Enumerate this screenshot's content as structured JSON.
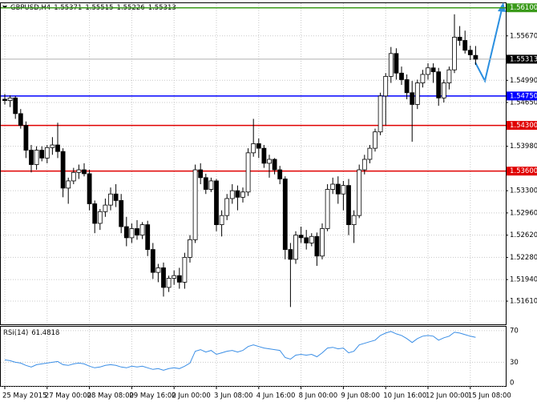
{
  "chart_data": {
    "type": "candlestick",
    "title": "GBPUSD,H4",
    "ohlc": [
      [
        1.547,
        1.5478,
        1.5462,
        1.5468
      ],
      [
        1.5468,
        1.5476,
        1.5458,
        1.5472
      ],
      [
        1.5472,
        1.5475,
        1.544,
        1.5448
      ],
      [
        1.5448,
        1.5455,
        1.5425,
        1.543
      ],
      [
        1.543,
        1.5436,
        1.538,
        1.5392
      ],
      [
        1.5392,
        1.54,
        1.5358,
        1.537
      ],
      [
        1.537,
        1.5398,
        1.5362,
        1.5392
      ],
      [
        1.5392,
        1.5398,
        1.5375,
        1.538
      ],
      [
        1.538,
        1.54,
        1.5372,
        1.5396
      ],
      [
        1.5396,
        1.5412,
        1.5385,
        1.54
      ],
      [
        1.54,
        1.5434,
        1.538,
        1.539
      ],
      [
        1.539,
        1.5395,
        1.532,
        1.5334
      ],
      [
        1.5334,
        1.535,
        1.531,
        1.5345
      ],
      [
        1.5345,
        1.5365,
        1.534,
        1.5358
      ],
      [
        1.5358,
        1.537,
        1.5348,
        1.5362
      ],
      [
        1.5362,
        1.5372,
        1.5352,
        1.5356
      ],
      [
        1.5356,
        1.5362,
        1.53,
        1.531
      ],
      [
        1.531,
        1.5315,
        1.5265,
        1.528
      ],
      [
        1.528,
        1.5302,
        1.527,
        1.5298
      ],
      [
        1.5298,
        1.5318,
        1.529,
        1.5308
      ],
      [
        1.5308,
        1.5335,
        1.53,
        1.5325
      ],
      [
        1.5325,
        1.534,
        1.5305,
        1.5315
      ],
      [
        1.5315,
        1.5325,
        1.5265,
        1.5275
      ],
      [
        1.5275,
        1.529,
        1.5245,
        1.5258
      ],
      [
        1.5258,
        1.528,
        1.525,
        1.5272
      ],
      [
        1.5272,
        1.5285,
        1.5255,
        1.5262
      ],
      [
        1.5262,
        1.5282,
        1.5256,
        1.5278
      ],
      [
        1.5278,
        1.5284,
        1.523,
        1.524
      ],
      [
        1.524,
        1.525,
        1.5195,
        1.5205
      ],
      [
        1.5205,
        1.5218,
        1.519,
        1.5212
      ],
      [
        1.5212,
        1.522,
        1.5168,
        1.5182
      ],
      [
        1.5182,
        1.52,
        1.5175,
        1.5196
      ],
      [
        1.5196,
        1.5208,
        1.5186,
        1.52
      ],
      [
        1.52,
        1.5212,
        1.518,
        1.519
      ],
      [
        1.519,
        1.5235,
        1.518,
        1.5228
      ],
      [
        1.5228,
        1.5262,
        1.522,
        1.5255
      ],
      [
        1.5255,
        1.537,
        1.525,
        1.5362
      ],
      [
        1.5362,
        1.5372,
        1.534,
        1.535
      ],
      [
        1.535,
        1.5356,
        1.5325,
        1.5332
      ],
      [
        1.5332,
        1.535,
        1.5328,
        1.5345
      ],
      [
        1.5345,
        1.5348,
        1.5268,
        1.5278
      ],
      [
        1.5278,
        1.53,
        1.526,
        1.5292
      ],
      [
        1.5292,
        1.5325,
        1.5285,
        1.5318
      ],
      [
        1.5318,
        1.534,
        1.531,
        1.533
      ],
      [
        1.533,
        1.5338,
        1.53,
        1.532
      ],
      [
        1.532,
        1.5335,
        1.5312,
        1.5328
      ],
      [
        1.5328,
        1.5395,
        1.5322,
        1.5388
      ],
      [
        1.5388,
        1.544,
        1.5382,
        1.5402
      ],
      [
        1.5402,
        1.541,
        1.538,
        1.5395
      ],
      [
        1.5395,
        1.54,
        1.5365,
        1.5372
      ],
      [
        1.5372,
        1.5385,
        1.535,
        1.5378
      ],
      [
        1.5378,
        1.538,
        1.5355,
        1.5362
      ],
      [
        1.5362,
        1.5368,
        1.534,
        1.5348
      ],
      [
        1.5348,
        1.5352,
        1.5225,
        1.524
      ],
      [
        1.524,
        1.525,
        1.5152,
        1.5225
      ],
      [
        1.5225,
        1.5268,
        1.5218,
        1.5262
      ],
      [
        1.5262,
        1.5275,
        1.525,
        1.5258
      ],
      [
        1.5258,
        1.527,
        1.524,
        1.525
      ],
      [
        1.525,
        1.5265,
        1.5245,
        1.526
      ],
      [
        1.526,
        1.5266,
        1.5215,
        1.523
      ],
      [
        1.523,
        1.528,
        1.5225,
        1.5272
      ],
      [
        1.5272,
        1.534,
        1.5268,
        1.5332
      ],
      [
        1.5332,
        1.535,
        1.5325,
        1.534
      ],
      [
        1.534,
        1.5352,
        1.531,
        1.5325
      ],
      [
        1.5325,
        1.5345,
        1.53,
        1.5338
      ],
      [
        1.5338,
        1.5348,
        1.5262,
        1.5278
      ],
      [
        1.5278,
        1.53,
        1.525,
        1.5292
      ],
      [
        1.5292,
        1.537,
        1.5288,
        1.5362
      ],
      [
        1.5362,
        1.5385,
        1.5355,
        1.5378
      ],
      [
        1.5378,
        1.54,
        1.5372,
        1.5395
      ],
      [
        1.5395,
        1.5425,
        1.539,
        1.542
      ],
      [
        1.542,
        1.548,
        1.5415,
        1.5475
      ],
      [
        1.5475,
        1.551,
        1.543,
        1.5505
      ],
      [
        1.5505,
        1.555,
        1.5495,
        1.554
      ],
      [
        1.554,
        1.5548,
        1.55,
        1.551
      ],
      [
        1.551,
        1.552,
        1.5492,
        1.55
      ],
      [
        1.55,
        1.5508,
        1.547,
        1.548
      ],
      [
        1.548,
        1.5498,
        1.5405,
        1.5462
      ],
      [
        1.5462,
        1.55,
        1.5455,
        1.5495
      ],
      [
        1.5495,
        1.5515,
        1.5488,
        1.5508
      ],
      [
        1.5508,
        1.5525,
        1.55,
        1.5518
      ],
      [
        1.5518,
        1.5525,
        1.5495,
        1.5512
      ],
      [
        1.5512,
        1.5518,
        1.546,
        1.5472
      ],
      [
        1.5472,
        1.55,
        1.5465,
        1.5495
      ],
      [
        1.5495,
        1.552,
        1.5485,
        1.5515
      ],
      [
        1.5515,
        1.56,
        1.551,
        1.5565
      ],
      [
        1.5565,
        1.5582,
        1.5552,
        1.556
      ],
      [
        1.556,
        1.5575,
        1.554,
        1.5545
      ],
      [
        1.5545,
        1.5552,
        1.553,
        1.5538
      ],
      [
        1.55371,
        1.55515,
        1.55226,
        1.55313
      ]
    ],
    "categories": [
      "25 May 2015",
      null,
      null,
      null,
      null,
      null,
      null,
      null,
      "27 May 00:00",
      null,
      null,
      null,
      null,
      null,
      null,
      null,
      "28 May 08:00",
      null,
      null,
      null,
      null,
      null,
      null,
      null,
      "29 May 16:00",
      null,
      null,
      null,
      null,
      null,
      null,
      null,
      "2 Jun 00:00",
      null,
      null,
      null,
      null,
      null,
      null,
      null,
      "3 Jun 08:00",
      null,
      null,
      null,
      null,
      null,
      null,
      null,
      "4 Jun 16:00",
      null,
      null,
      null,
      null,
      null,
      null,
      null,
      "8 Jun 00:00",
      null,
      null,
      null,
      null,
      null,
      null,
      null,
      "9 Jun 08:00",
      null,
      null,
      null,
      null,
      null,
      null,
      null,
      "10 Jun 16:00",
      null,
      null,
      null,
      null,
      null,
      null,
      null,
      "12 Jun 00:00",
      null,
      null,
      null,
      null,
      null,
      null,
      null,
      "15 Jun 08:00",
      null
    ],
    "ylim": [
      1.51255,
      1.5617
    ],
    "yticks": [
      {
        "value": 1.5161,
        "label": "1.51610"
      },
      {
        "value": 1.5194,
        "label": "1.51940"
      },
      {
        "value": 1.5228,
        "label": "1.52280"
      },
      {
        "value": 1.5262,
        "label": "1.52620"
      },
      {
        "value": 1.5296,
        "label": "1.52960"
      },
      {
        "value": 1.533,
        "label": "1.53300"
      },
      {
        "value": 1.5398,
        "label": "1.53980"
      },
      {
        "value": 1.5465,
        "label": "1.54650"
      },
      {
        "value": 1.5499,
        "label": "1.54990"
      },
      {
        "value": 1.5567,
        "label": "1.55670"
      }
    ],
    "grid": true,
    "levels": [
      {
        "value": 1.561,
        "label": "1.56100",
        "color": "#3a9a1a"
      },
      {
        "value": 1.5475,
        "label": "1.54750",
        "color": "#0000ff"
      },
      {
        "value": 1.543,
        "label": "1.54300",
        "color": "#e00000"
      },
      {
        "value": 1.536,
        "label": "1.53600",
        "color": "#e00000"
      }
    ],
    "rsi": {
      "label": "RSI(14)",
      "color": "#3a8ee6",
      "ylim": [
        0,
        75
      ],
      "yticks": [
        0,
        30,
        70
      ],
      "values": [
        33,
        32,
        30,
        29,
        26,
        24,
        27,
        28,
        29,
        30,
        31,
        27,
        26,
        28,
        29,
        28,
        25,
        23,
        24,
        26,
        27,
        26,
        24,
        23,
        25,
        24,
        25,
        23,
        21,
        22,
        20,
        22,
        23,
        22,
        25,
        29,
        44,
        46,
        43,
        45,
        40,
        42,
        44,
        45,
        43,
        45,
        50,
        52,
        50,
        48,
        47,
        46,
        45,
        36,
        34,
        39,
        40,
        39,
        40,
        37,
        42,
        48,
        49,
        47,
        48,
        42,
        44,
        52,
        54,
        56,
        58,
        64,
        67,
        69,
        66,
        64,
        60,
        55,
        60,
        63,
        64,
        63,
        58,
        61,
        63,
        68,
        67,
        65,
        63,
        61.4818
      ]
    }
  }
}
